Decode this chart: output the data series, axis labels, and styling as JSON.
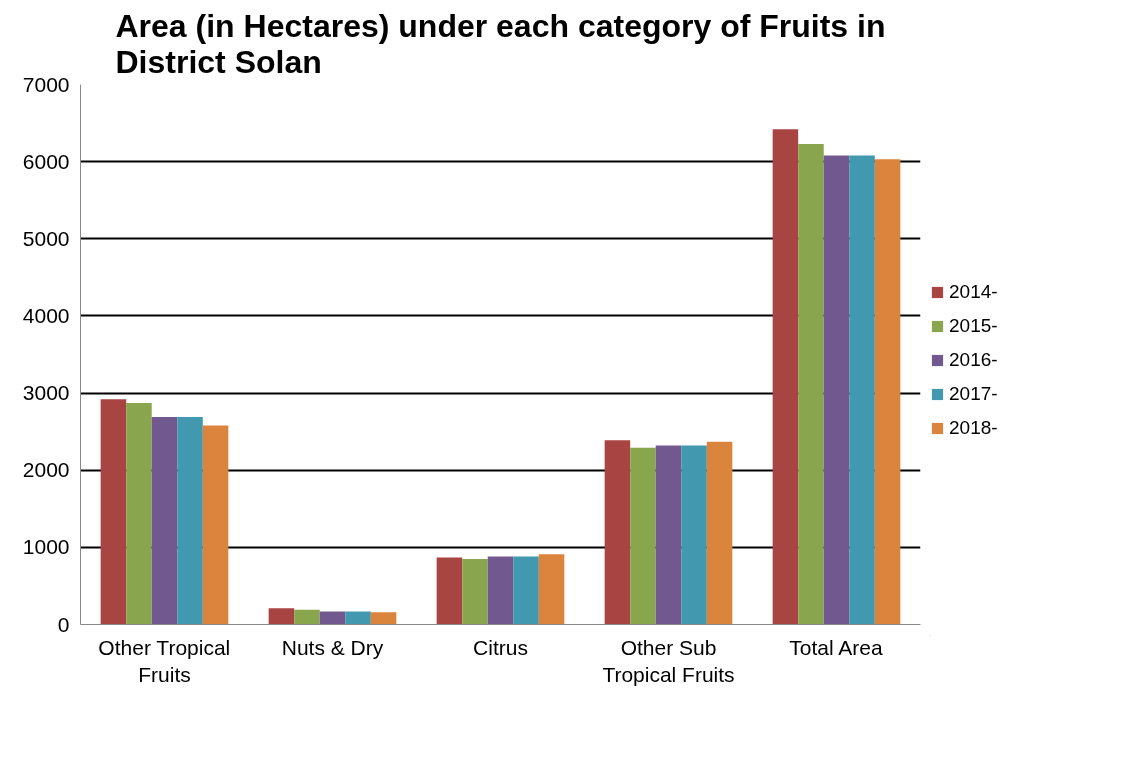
{
  "chart_data": {
    "type": "bar",
    "title": "Area (in Hectares) under each category of Fruits in\nDistrict Solan",
    "categories": [
      "Other Tropical\nFruits",
      "Nuts & Dry",
      "Citrus",
      "Other Sub\nTropical Fruits",
      "Total Area"
    ],
    "series": [
      {
        "name": "2014-",
        "color": "#a84543",
        "values": [
          2920,
          210,
          870,
          2390,
          6420
        ]
      },
      {
        "name": "2015-",
        "color": "#89a54e",
        "values": [
          2870,
          190,
          850,
          2290,
          6230
        ]
      },
      {
        "name": "2016-",
        "color": "#71588f",
        "values": [
          2690,
          170,
          880,
          2320,
          6080
        ]
      },
      {
        "name": "2017-",
        "color": "#4198af",
        "values": [
          2690,
          170,
          880,
          2320,
          6080
        ]
      },
      {
        "name": "2018-",
        "color": "#db843d",
        "values": [
          2580,
          160,
          910,
          2370,
          6030
        ]
      }
    ],
    "ylim": [
      0,
      7000
    ],
    "yticks": [
      0,
      1000,
      2000,
      3000,
      4000,
      5000,
      6000,
      7000
    ],
    "grid": "y",
    "legend": "right"
  }
}
